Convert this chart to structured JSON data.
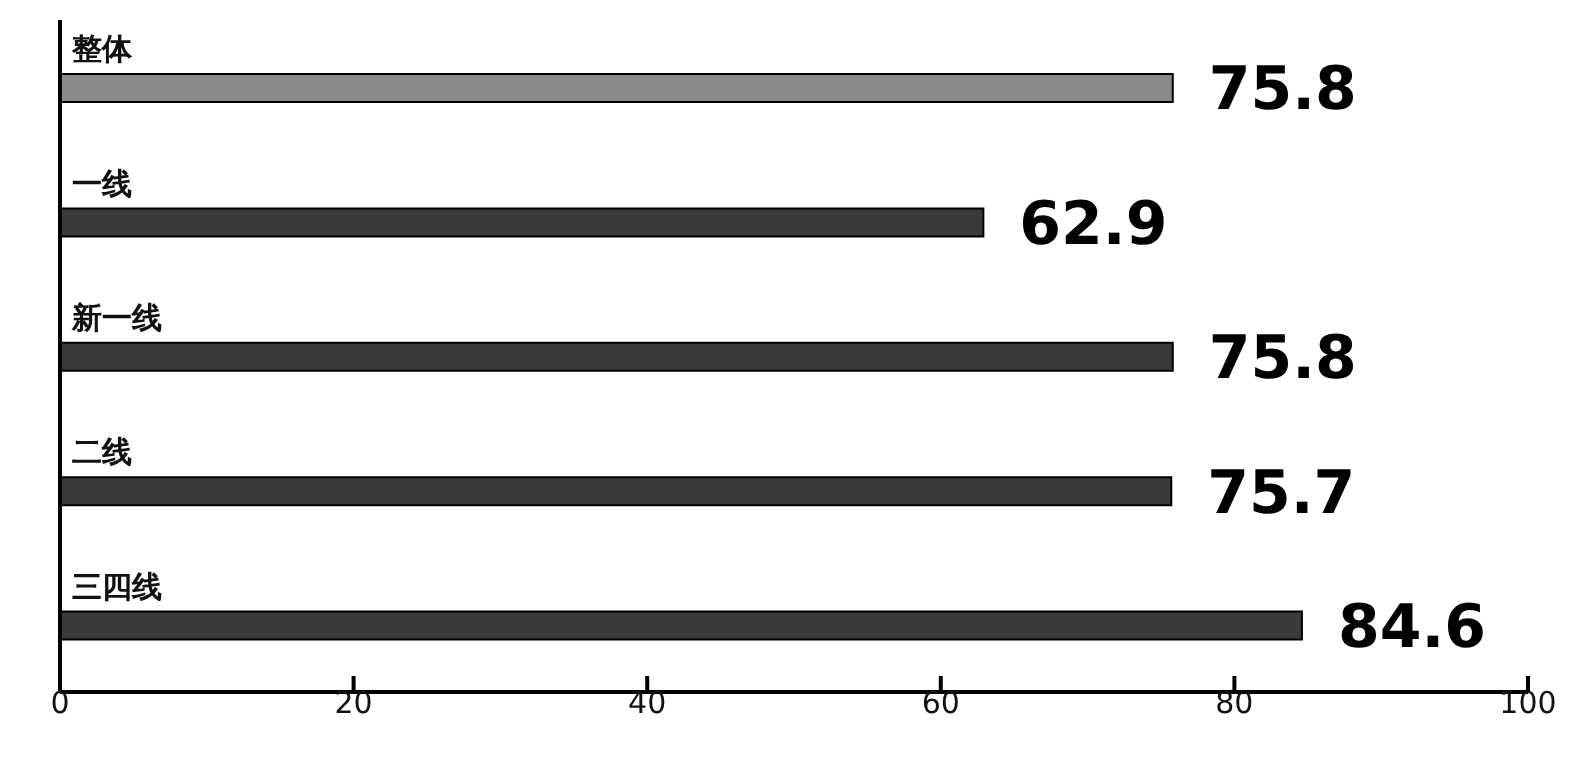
{
  "chart_data": {
    "type": "bar",
    "orientation": "horizontal",
    "categories": [
      "整体",
      "一线",
      "新一线",
      "二线",
      "三四线"
    ],
    "values": [
      75.8,
      62.9,
      75.8,
      75.7,
      84.6
    ],
    "colors": [
      "#8a8a8a",
      "#3a3a3a",
      "#3a3a3a",
      "#3a3a3a",
      "#3a3a3a"
    ],
    "xlim": [
      0,
      100
    ],
    "xticks": [
      0,
      20,
      40,
      60,
      80,
      100
    ],
    "data_labels": true,
    "grid": false,
    "legend": false
  }
}
